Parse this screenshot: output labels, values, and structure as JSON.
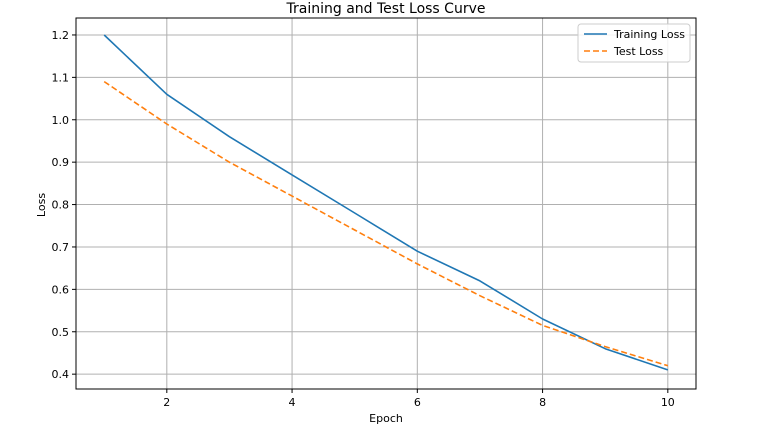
{
  "chart_data": {
    "type": "line",
    "title": "Training and Test Loss Curve",
    "xlabel": "Epoch",
    "ylabel": "Loss",
    "xlim": [
      0.55,
      10.45
    ],
    "ylim": [
      0.365,
      1.24
    ],
    "xticks": [
      2,
      4,
      6,
      8,
      10
    ],
    "yticks": [
      0.4,
      0.5,
      0.6,
      0.7,
      0.8,
      0.9,
      1.0,
      1.1,
      1.2
    ],
    "grid": true,
    "legend_position": "top-right",
    "x": [
      1,
      2,
      3,
      4,
      5,
      6,
      7,
      8,
      9,
      10
    ],
    "series": [
      {
        "name": "Training Loss",
        "color": "#1f77b4",
        "style": "solid",
        "values": [
          1.2,
          1.06,
          0.96,
          0.87,
          0.78,
          0.69,
          0.62,
          0.53,
          0.46,
          0.41
        ]
      },
      {
        "name": "Test Loss",
        "color": "#ff7f0e",
        "style": "dashed",
        "values": [
          1.09,
          0.99,
          0.9,
          0.82,
          0.74,
          0.66,
          0.585,
          0.515,
          0.465,
          0.42
        ]
      }
    ]
  }
}
